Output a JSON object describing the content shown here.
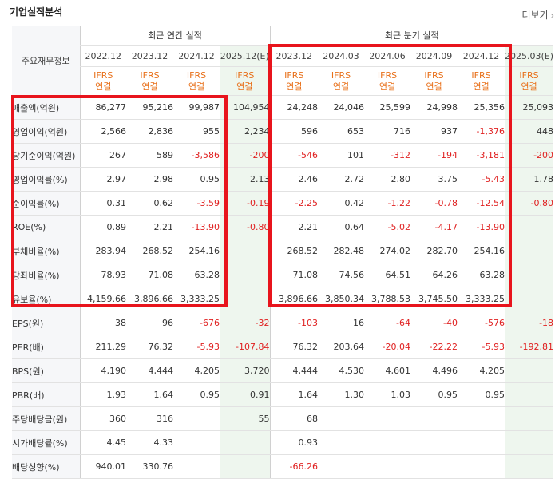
{
  "header": {
    "title": "기업실적분석",
    "more_label": "더보기"
  },
  "colors": {
    "negative": "#e02020",
    "ifrs": "#e8701a",
    "highlight_box": "#e8141c",
    "forecast_bg": "#eef6ee"
  },
  "table": {
    "label_header": "주요재무정보",
    "group_annual": "최근 연간 실적",
    "group_quarter": "최근 분기 실적",
    "periods": [
      "2022.12",
      "2023.12",
      "2024.12",
      "2025.12(E)",
      "2023.12",
      "2024.03",
      "2024.06",
      "2024.09",
      "2024.12",
      "2025.03(E)"
    ],
    "ifrs_top": [
      "IFRS",
      "IFRS",
      "IFRS",
      "IFRS",
      "IFRS",
      "IFRS",
      "IFRS",
      "IFRS",
      "IFRS",
      "IFRS"
    ],
    "ifrs_bottom": [
      "연결",
      "연결",
      "연결",
      "연결",
      "연결",
      "연결",
      "연결",
      "연결",
      "연결",
      "연결"
    ],
    "rows": [
      {
        "label": "매출액(억원)",
        "values": [
          "86,277",
          "95,216",
          "99,987",
          "104,954",
          "24,248",
          "24,046",
          "25,599",
          "24,998",
          "25,356",
          "25,093"
        ]
      },
      {
        "label": "영업이익(억원)",
        "values": [
          "2,566",
          "2,836",
          "955",
          "2,234",
          "596",
          "653",
          "716",
          "937",
          "-1,376",
          "448"
        ]
      },
      {
        "label": "당기순이익(억원)",
        "values": [
          "267",
          "589",
          "-3,586",
          "-200",
          "-546",
          "101",
          "-312",
          "-194",
          "-3,181",
          "-200"
        ]
      },
      {
        "label": "영업이익률(%)",
        "values": [
          "2.97",
          "2.98",
          "0.95",
          "2.13",
          "2.46",
          "2.72",
          "2.80",
          "3.75",
          "-5.43",
          "1.78"
        ]
      },
      {
        "label": "순이익률(%)",
        "values": [
          "0.31",
          "0.62",
          "-3.59",
          "-0.19",
          "-2.25",
          "0.42",
          "-1.22",
          "-0.78",
          "-12.54",
          "-0.80"
        ]
      },
      {
        "label": "ROE(%)",
        "values": [
          "0.89",
          "2.21",
          "-13.90",
          "-0.80",
          "2.21",
          "0.64",
          "-5.02",
          "-4.17",
          "-13.90",
          ""
        ]
      },
      {
        "label": "부채비율(%)",
        "values": [
          "283.94",
          "268.52",
          "254.16",
          "",
          "268.52",
          "282.48",
          "274.02",
          "282.70",
          "254.16",
          ""
        ]
      },
      {
        "label": "당좌비율(%)",
        "values": [
          "78.93",
          "71.08",
          "63.28",
          "",
          "71.08",
          "74.56",
          "64.51",
          "64.26",
          "63.28",
          ""
        ]
      },
      {
        "label": "유보율(%)",
        "values": [
          "4,159.66",
          "3,896.66",
          "3,333.25",
          "",
          "3,896.66",
          "3,850.34",
          "3,788.53",
          "3,745.50",
          "3,333.25",
          ""
        ]
      },
      {
        "label": "EPS(원)",
        "values": [
          "38",
          "96",
          "-676",
          "-32",
          "-103",
          "16",
          "-64",
          "-40",
          "-576",
          "-18"
        ]
      },
      {
        "label": "PER(배)",
        "values": [
          "211.29",
          "76.32",
          "-5.93",
          "-107.84",
          "76.32",
          "203.64",
          "-20.04",
          "-22.22",
          "-5.93",
          "-192.81"
        ]
      },
      {
        "label": "BPS(원)",
        "values": [
          "4,190",
          "4,444",
          "4,205",
          "3,720",
          "4,444",
          "4,530",
          "4,601",
          "4,496",
          "4,205",
          ""
        ]
      },
      {
        "label": "PBR(배)",
        "values": [
          "1.93",
          "1.64",
          "0.95",
          "0.91",
          "1.64",
          "1.30",
          "1.03",
          "0.95",
          "0.95",
          ""
        ]
      },
      {
        "label": "주당배당금(원)",
        "values": [
          "360",
          "316",
          "",
          "55",
          "68",
          "",
          "",
          "",
          "",
          ""
        ]
      },
      {
        "label": "시가배당률(%)",
        "values": [
          "4.45",
          "4.33",
          "",
          "",
          "0.93",
          "",
          "",
          "",
          "",
          ""
        ]
      },
      {
        "label": "배당성향(%)",
        "values": [
          "940.01",
          "330.76",
          "",
          "",
          "-66.26",
          "",
          "",
          "",
          "",
          ""
        ]
      }
    ]
  }
}
